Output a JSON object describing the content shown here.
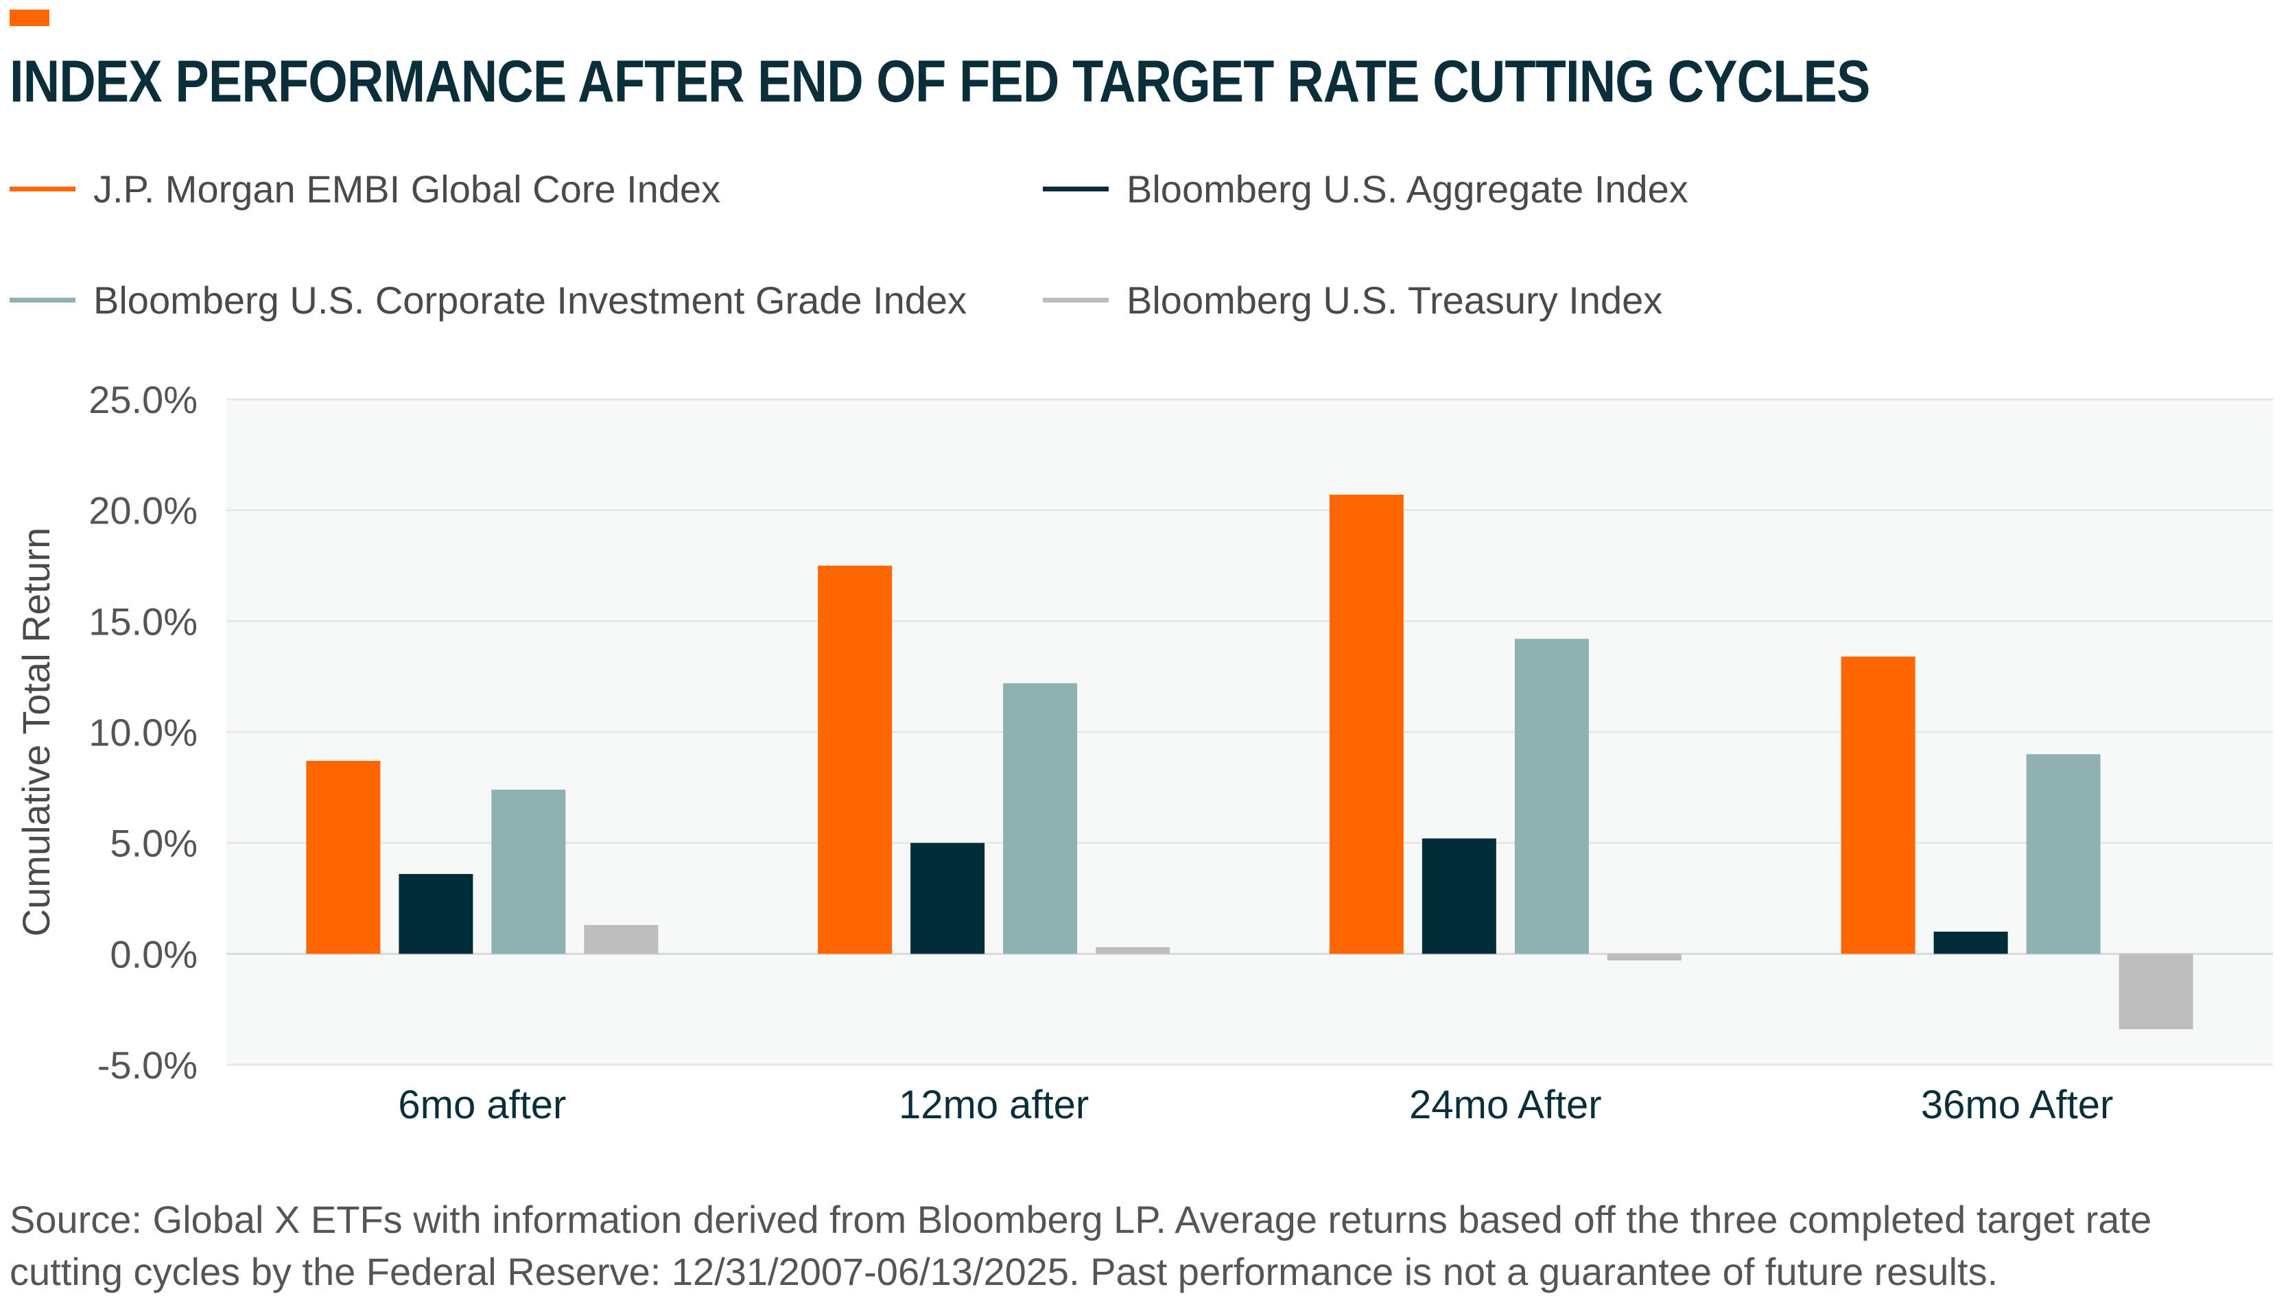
{
  "header": {
    "title": "INDEX PERFORMANCE AFTER END OF FED TARGET RATE CUTTING CYCLES"
  },
  "colors": {
    "accent": "#ff6600",
    "embi": "#ff6600",
    "aggregate": "#002d38",
    "corporate": "#8fb1b1",
    "treasury": "#bdbdbd",
    "plot_bg": "#f7f8f8",
    "grid": "#e6e8e8"
  },
  "legend": [
    {
      "label": "J.P. Morgan EMBI Global Core Index",
      "color": "#ff6600"
    },
    {
      "label": "Bloomberg U.S. Aggregate Index",
      "color": "#002d38"
    },
    {
      "label": "Bloomberg U.S. Corporate Investment Grade Index",
      "color": "#8fb1b1"
    },
    {
      "label": "Bloomberg U.S. Treasury Index",
      "color": "#bdbdbd"
    }
  ],
  "chart_data": {
    "type": "bar",
    "title": "INDEX PERFORMANCE AFTER END OF FED TARGET RATE CUTTING CYCLES",
    "xlabel": "",
    "ylabel": "Cumulative Total Return",
    "ylim": [
      -5.0,
      25.0
    ],
    "yticks": [
      "25.0%",
      "20.0%",
      "15.0%",
      "10.0%",
      "5.0%",
      "0.0%",
      "-5.0%"
    ],
    "ytick_values": [
      25,
      20,
      15,
      10,
      5,
      0,
      -5
    ],
    "categories": [
      "6mo after",
      "12mo after",
      "24mo After",
      "36mo After"
    ],
    "series": [
      {
        "name": "J.P. Morgan EMBI Global Core Index",
        "color": "#ff6600",
        "values": [
          8.7,
          17.5,
          20.7,
          13.4
        ]
      },
      {
        "name": "Bloomberg U.S. Aggregate Index",
        "color": "#002d38",
        "values": [
          3.6,
          5.0,
          5.2,
          1.0
        ]
      },
      {
        "name": "Bloomberg U.S. Corporate Investment Grade Index",
        "color": "#8fb1b1",
        "values": [
          7.4,
          12.2,
          14.2,
          9.0
        ]
      },
      {
        "name": "Bloomberg U.S. Treasury Index",
        "color": "#bdbdbd",
        "values": [
          1.3,
          0.3,
          -0.3,
          -3.4
        ]
      }
    ],
    "grid": true,
    "legend_position": "top"
  },
  "footer": {
    "source": "Source: Global X ETFs with information derived from Bloomberg LP. Average returns based off the three completed target rate cutting cycles by the Federal Reserve: 12/31/2007-06/13/2025. Past performance is not a guarantee of future results."
  }
}
